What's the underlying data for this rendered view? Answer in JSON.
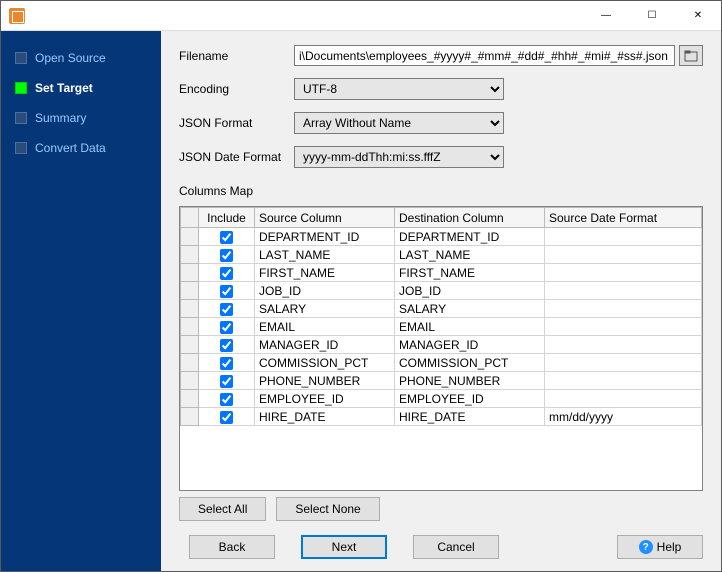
{
  "window": {
    "minimize_glyph": "—",
    "maximize_glyph": "☐",
    "close_glyph": "✕"
  },
  "sidebar": {
    "steps": [
      {
        "label": "Open Source",
        "active": false
      },
      {
        "label": "Set Target",
        "active": true
      },
      {
        "label": "Summary",
        "active": false
      },
      {
        "label": "Convert Data",
        "active": false
      }
    ]
  },
  "form": {
    "filename_label": "Filename",
    "filename_value": "i\\Documents\\employees_#yyyy#_#mm#_#dd#_#hh#_#mi#_#ss#.json",
    "encoding_label": "Encoding",
    "encoding_value": "UTF-8",
    "json_format_label": "JSON Format",
    "json_format_value": "Array Without Name",
    "json_date_format_label": "JSON Date Format",
    "json_date_format_value": "yyyy-mm-ddThh:mi:ss.fffZ"
  },
  "columns_map": {
    "title": "Columns Map",
    "headers": {
      "include": "Include",
      "source": "Source Column",
      "destination": "Destination Column",
      "source_date_format": "Source Date Format"
    },
    "rows": [
      {
        "include": true,
        "source": "DEPARTMENT_ID",
        "destination": "DEPARTMENT_ID",
        "fmt": ""
      },
      {
        "include": true,
        "source": "LAST_NAME",
        "destination": "LAST_NAME",
        "fmt": ""
      },
      {
        "include": true,
        "source": "FIRST_NAME",
        "destination": "FIRST_NAME",
        "fmt": ""
      },
      {
        "include": true,
        "source": "JOB_ID",
        "destination": "JOB_ID",
        "fmt": ""
      },
      {
        "include": true,
        "source": "SALARY",
        "destination": "SALARY",
        "fmt": ""
      },
      {
        "include": true,
        "source": "EMAIL",
        "destination": "EMAIL",
        "fmt": ""
      },
      {
        "include": true,
        "source": "MANAGER_ID",
        "destination": "MANAGER_ID",
        "fmt": ""
      },
      {
        "include": true,
        "source": "COMMISSION_PCT",
        "destination": "COMMISSION_PCT",
        "fmt": ""
      },
      {
        "include": true,
        "source": "PHONE_NUMBER",
        "destination": "PHONE_NUMBER",
        "fmt": ""
      },
      {
        "include": true,
        "source": "EMPLOYEE_ID",
        "destination": "EMPLOYEE_ID",
        "fmt": ""
      },
      {
        "include": true,
        "source": "HIRE_DATE",
        "destination": "HIRE_DATE",
        "fmt": "mm/dd/yyyy"
      }
    ],
    "select_all_label": "Select All",
    "select_none_label": "Select None"
  },
  "footer": {
    "back_label": "Back",
    "next_label": "Next",
    "cancel_label": "Cancel",
    "help_label": "Help"
  },
  "colors": {
    "sidebar_bg": "#053778",
    "sidebar_link": "#9cc8ff",
    "active_step": "#00ff00",
    "main_bg": "#f0f0f0",
    "button_bg": "#e1e1e1",
    "primary_border": "#0078d7"
  }
}
